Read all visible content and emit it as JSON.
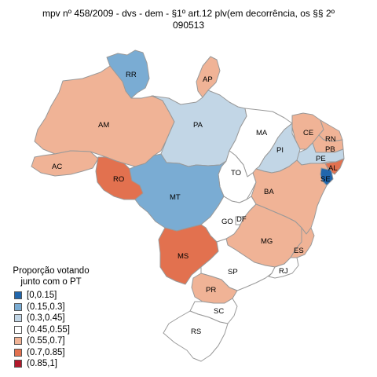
{
  "title_line1": "mpv  nº 458/2009 - dvs - dem - §1º art.12 plv(em decorrência, os §§ 2º",
  "title_line2": "090513",
  "legend": {
    "title_line1": "Proporção votando",
    "title_line2": "junto com o PT",
    "bins": [
      {
        "label": "[0,0.15]",
        "color": "#2166ac"
      },
      {
        "label": "(0.15,0.3]",
        "color": "#7aacd3"
      },
      {
        "label": "(0.3,0.45]",
        "color": "#c2d6e6"
      },
      {
        "label": "(0.45,0.55]",
        "color": "#ffffff"
      },
      {
        "label": "(0.55,0.7]",
        "color": "#f0b396"
      },
      {
        "label": "(0.7,0.85]",
        "color": "#e2714f"
      },
      {
        "label": "(0.85,1]",
        "color": "#b2182b"
      }
    ]
  },
  "states": {
    "RR": {
      "label": "RR",
      "bin": 1
    },
    "AP": {
      "label": "AP",
      "bin": 4
    },
    "AM": {
      "label": "AM",
      "bin": 4
    },
    "PA": {
      "label": "PA",
      "bin": 2
    },
    "MA": {
      "label": "MA",
      "bin": 3
    },
    "CE": {
      "label": "CE",
      "bin": 4
    },
    "RN": {
      "label": "RN",
      "bin": 4
    },
    "PB": {
      "label": "PB",
      "bin": 4
    },
    "PE": {
      "label": "PE",
      "bin": 2
    },
    "AL": {
      "label": "AL",
      "bin": 5
    },
    "SE": {
      "label": "SE",
      "bin": 0
    },
    "PI": {
      "label": "PI",
      "bin": 2
    },
    "AC": {
      "label": "AC",
      "bin": 4
    },
    "RO": {
      "label": "RO",
      "bin": 5
    },
    "TO": {
      "label": "TO",
      "bin": 3
    },
    "BA": {
      "label": "BA",
      "bin": 4
    },
    "MT": {
      "label": "MT",
      "bin": 1
    },
    "GO": {
      "label": "GO",
      "bin": 3
    },
    "DF": {
      "label": "DF",
      "bin": 3
    },
    "MG": {
      "label": "MG",
      "bin": 4
    },
    "ES": {
      "label": "ES",
      "bin": 4
    },
    "MS": {
      "label": "MS",
      "bin": 5
    },
    "SP": {
      "label": "SP",
      "bin": 3
    },
    "RJ": {
      "label": "RJ",
      "bin": 3
    },
    "PR": {
      "label": "PR",
      "bin": 4
    },
    "SC": {
      "label": "SC",
      "bin": 3
    },
    "RS": {
      "label": "RS",
      "bin": 3
    }
  }
}
